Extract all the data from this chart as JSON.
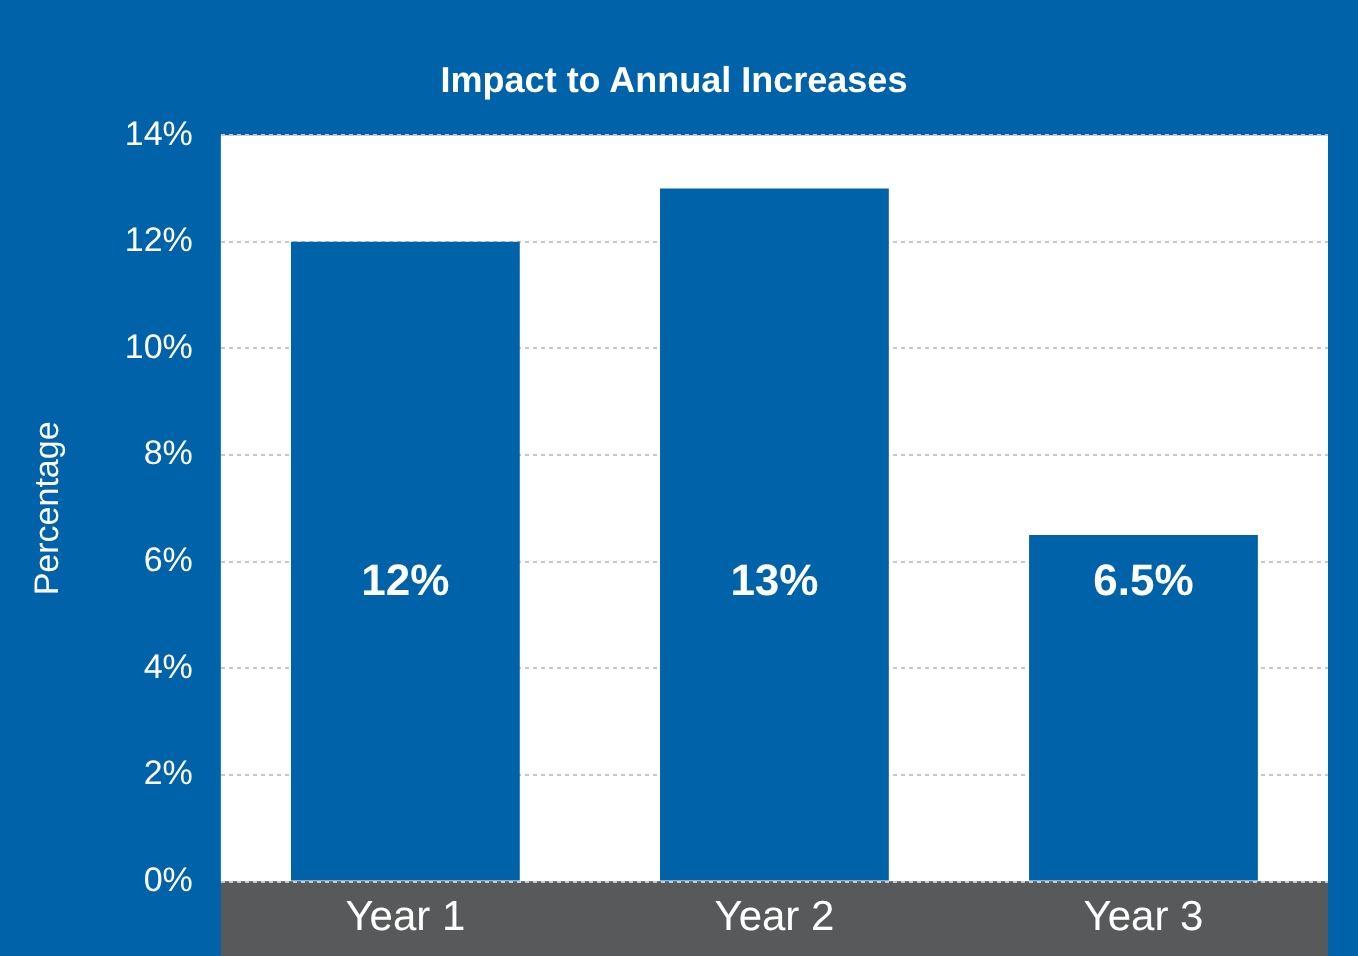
{
  "chart_data": {
    "type": "bar",
    "title": "Impact to Annual Increases",
    "ylabel": "Percentage",
    "categories": [
      "Year 1",
      "Year 2",
      "Year 3"
    ],
    "values": [
      12,
      13,
      6.5
    ],
    "color": "#0063a9",
    "value_labels": [
      "12%",
      "13%",
      "6.5%"
    ],
    "ylim": [
      0,
      14
    ],
    "yticks": [
      {
        "value": 0,
        "label": "0%"
      },
      {
        "value": 2,
        "label": "2%"
      },
      {
        "value": 4,
        "label": "4%"
      },
      {
        "value": 6,
        "label": "6%"
      },
      {
        "value": 8,
        "label": "8%"
      },
      {
        "value": 10,
        "label": "10%"
      },
      {
        "value": 12,
        "label": "12%"
      },
      {
        "value": 14,
        "label": "14%"
      }
    ],
    "grid": "y",
    "legend": false
  }
}
